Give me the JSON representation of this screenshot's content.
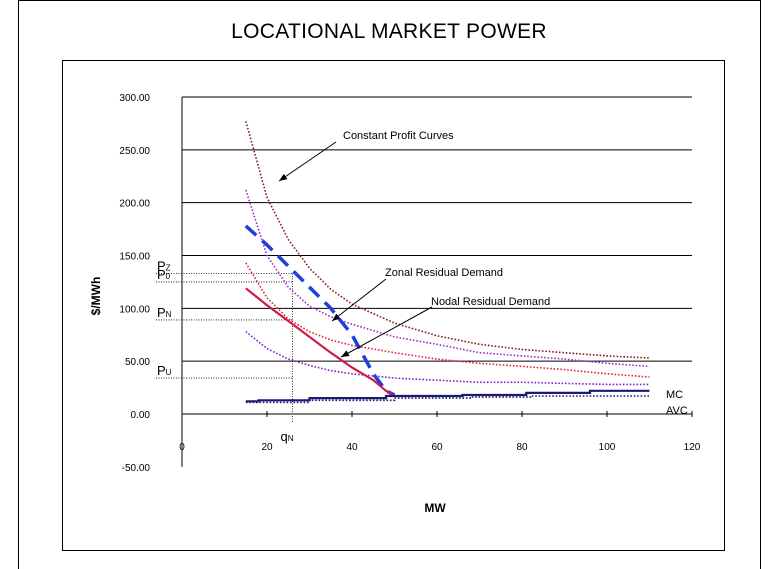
{
  "title": "LOCATIONAL MARKET POWER",
  "chart_data": {
    "type": "line",
    "title": "LOCATIONAL MARKET POWER",
    "xlabel": "MW",
    "ylabel": "$/MWh",
    "xlim": [
      0,
      120
    ],
    "ylim": [
      -50,
      300
    ],
    "x_ticks": [
      "0",
      "20",
      "40",
      "60",
      "80",
      "100",
      "120"
    ],
    "y_ticks": [
      "-50.00",
      "0.00",
      "50.00",
      "100.00",
      "150.00",
      "200.00",
      "250.00",
      "300.00"
    ],
    "grid": "horizontal",
    "series": [
      {
        "name": "Constant Profit Curves",
        "style": "dotted",
        "color": "#8b1a1a",
        "x": [
          15,
          20,
          25,
          30,
          35,
          40,
          50,
          60,
          70,
          80,
          90,
          100,
          110
        ],
        "y": [
          277,
          205,
          165,
          138,
          118,
          104,
          86,
          74,
          66,
          61,
          58,
          55,
          53
        ]
      },
      {
        "style": "dotted",
        "color": "#9b30d0",
        "x": [
          15,
          20,
          25,
          30,
          35,
          40,
          50,
          60,
          70,
          80,
          90,
          100,
          110
        ],
        "y": [
          212,
          150,
          120,
          102,
          92,
          85,
          73,
          66,
          58,
          55,
          52,
          48,
          45
        ]
      },
      {
        "style": "dotted",
        "color": "#e8203a",
        "x": [
          15,
          20,
          25,
          30,
          35,
          40,
          50,
          60,
          70,
          80,
          90,
          100,
          110
        ],
        "y": [
          143,
          110,
          90,
          78,
          70,
          65,
          58,
          52,
          48,
          45,
          42,
          38,
          35
        ]
      },
      {
        "style": "dotted",
        "color": "#7b22c8",
        "x": [
          15,
          20,
          25,
          30,
          35,
          40,
          50,
          60,
          70,
          80,
          90,
          100,
          110
        ],
        "y": [
          78,
          62,
          52,
          46,
          41,
          38,
          34,
          32,
          30,
          30,
          29,
          28,
          28
        ]
      },
      {
        "name": "Zonal Residual Demand",
        "style": "dashed",
        "color": "#1f3fdc",
        "x": [
          15,
          20,
          25,
          30,
          35,
          40,
          45,
          48,
          50
        ],
        "y": [
          178,
          160,
          140,
          120,
          100,
          75,
          38,
          22,
          18
        ]
      },
      {
        "name": "Nodal Residual Demand",
        "style": "solid",
        "color": "#d01a4a",
        "x": [
          15,
          20,
          25,
          30,
          35,
          40,
          45,
          48,
          50
        ],
        "y": [
          119,
          103,
          88,
          73,
          58,
          44,
          32,
          22,
          17
        ]
      },
      {
        "name": "MC",
        "style": "solid",
        "color": "#1a1a6e",
        "x": [
          15,
          18,
          18,
          30,
          30,
          48,
          48,
          66,
          66,
          81,
          81,
          96,
          96,
          110
        ],
        "y": [
          12,
          12,
          13,
          13,
          15,
          15,
          17,
          17,
          18,
          18,
          20,
          20,
          22,
          22
        ]
      },
      {
        "name": "AVC",
        "style": "dotted",
        "color": "#1a1a6e",
        "x": [
          15,
          30,
          30,
          50,
          50,
          68,
          68,
          82,
          82,
          110
        ],
        "y": [
          11,
          11,
          13,
          13,
          15,
          15,
          16,
          16,
          17,
          17
        ]
      }
    ],
    "reference_levels": [
      {
        "label": "P",
        "sub": "Z",
        "y": 133
      },
      {
        "label": "P",
        "sub": "0",
        "y": 125
      },
      {
        "label": "P",
        "sub": "N",
        "y": 89
      },
      {
        "label": "P",
        "sub": "U",
        "y": 34
      }
    ],
    "reference_x": {
      "label": "q",
      "sub": "N",
      "x": 26
    },
    "annotations": {
      "constant_profit": "Constant Profit Curves",
      "zonal": "Zonal Residual Demand",
      "nodal": "Nodal Residual Demand",
      "mc": "MC",
      "avc": "AVC"
    }
  }
}
